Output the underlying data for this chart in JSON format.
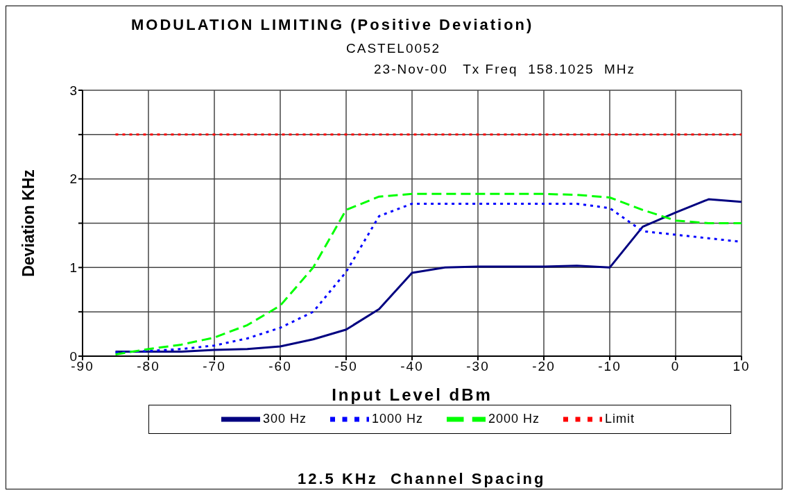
{
  "chart_data": {
    "type": "line",
    "title": "MODULATION LIMITING (Positive Deviation)",
    "subtitle": "CASTEL0052",
    "xlabel": "Input Level dBm",
    "ylabel": "Deviation KHz",
    "annotations": [
      "23-Nov-00   Tx Freq  158.1025  MHz",
      "12.5 KHz  Channel Spacing"
    ],
    "x": [
      -85,
      -80,
      -75,
      -70,
      -65,
      -60,
      -55,
      -50,
      -45,
      -40,
      -35,
      -30,
      -25,
      -20,
      -15,
      -10,
      -5,
      0,
      5,
      10
    ],
    "series": [
      {
        "name": "300 Hz",
        "color": "#000080",
        "line_style": "solid",
        "values": [
          0.05,
          0.05,
          0.05,
          0.07,
          0.08,
          0.11,
          0.19,
          0.3,
          0.53,
          0.94,
          1.0,
          1.01,
          1.01,
          1.01,
          1.02,
          1.0,
          1.46,
          1.62,
          1.77,
          1.74
        ]
      },
      {
        "name": "1000 Hz",
        "color": "#0000ff",
        "line_style": "dotted",
        "values": [
          0.04,
          0.06,
          0.08,
          0.12,
          0.2,
          0.32,
          0.5,
          0.95,
          1.58,
          1.72,
          1.72,
          1.72,
          1.72,
          1.72,
          1.72,
          1.67,
          1.41,
          1.37,
          1.33,
          1.29
        ]
      },
      {
        "name": "2000 Hz",
        "color": "#00ff00",
        "line_style": "dashed",
        "values": [
          0.02,
          0.08,
          0.13,
          0.21,
          0.35,
          0.57,
          1.0,
          1.65,
          1.8,
          1.83,
          1.83,
          1.83,
          1.83,
          1.83,
          1.82,
          1.79,
          1.65,
          1.53,
          1.5,
          1.5
        ]
      },
      {
        "name": "Limit",
        "color": "#ff0000",
        "line_style": "dotted",
        "values": [
          2.5,
          2.5,
          2.5,
          2.5,
          2.5,
          2.5,
          2.5,
          2.5,
          2.5,
          2.5,
          2.5,
          2.5,
          2.5,
          2.5,
          2.5,
          2.5,
          2.5,
          2.5,
          2.5,
          2.5
        ]
      }
    ],
    "xlim": [
      -90,
      10
    ],
    "xticks": [
      -90,
      -80,
      -70,
      -60,
      -50,
      -40,
      -30,
      -20,
      -10,
      0,
      10
    ],
    "ylim": [
      0,
      3
    ],
    "yticks": [
      0,
      {
        "value": 0.5,
        "label": null
      },
      1,
      {
        "value": 1.5,
        "label": null
      },
      2,
      {
        "value": 2.5,
        "label": null
      },
      3
    ],
    "grid": true,
    "legend": "bottom"
  }
}
